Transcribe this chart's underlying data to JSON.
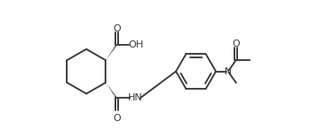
{
  "background_color": "#ffffff",
  "line_color": "#3a3a3a",
  "line_width": 1.35,
  "font_size": 7.8,
  "fig_width": 3.66,
  "fig_height": 1.55,
  "dpi": 100,
  "xlim": [
    -0.3,
    10.2
  ],
  "ylim": [
    0.2,
    4.5
  ]
}
